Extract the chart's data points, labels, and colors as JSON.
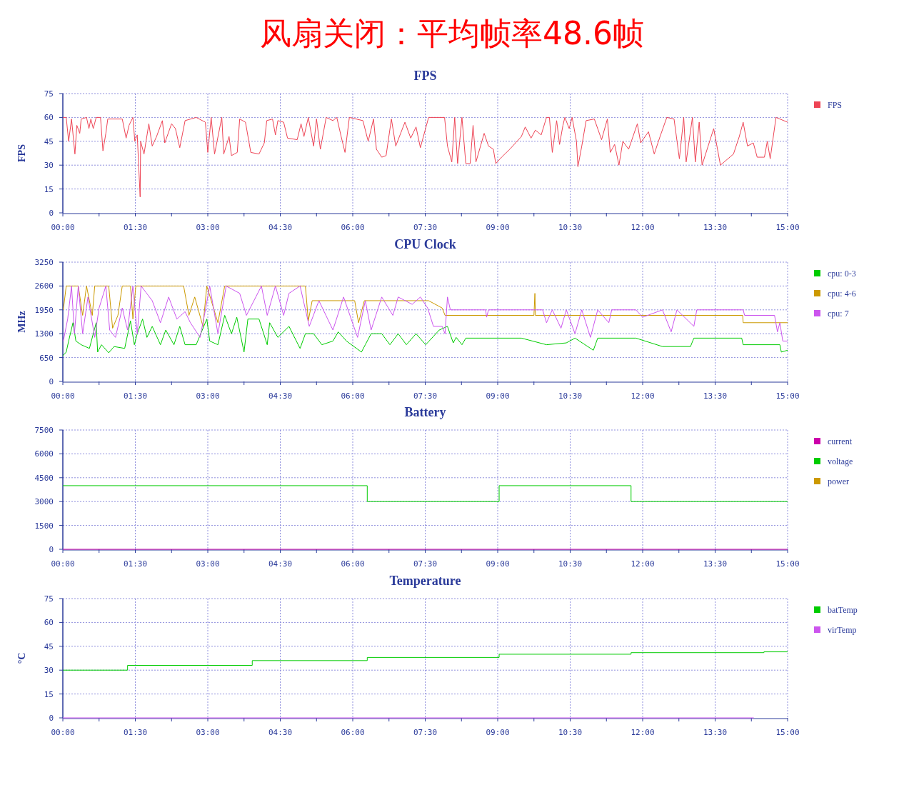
{
  "chart_data": [
    {
      "type": "line",
      "title": "风扇关闭：平均帧率48.6帧",
      "subtitle": "FPS",
      "ylabel": "FPS",
      "xlim": [
        0,
        15
      ],
      "ylim": [
        0,
        75
      ],
      "yticks": [
        0,
        15,
        30,
        45,
        60,
        75
      ],
      "grid": true,
      "legend": "top right",
      "xticks": [
        {
          "value": 0,
          "label": "00:00"
        },
        {
          "value": 0.75,
          "label": null
        },
        {
          "value": 1.5,
          "label": "01:30"
        },
        {
          "value": 2.25,
          "label": null
        },
        {
          "value": 3,
          "label": "03:00"
        },
        {
          "value": 3.75,
          "label": null
        },
        {
          "value": 4.5,
          "label": "04:30"
        },
        {
          "value": 5.25,
          "label": null
        },
        {
          "value": 6,
          "label": "06:00"
        },
        {
          "value": 6.75,
          "label": null
        },
        {
          "value": 7.5,
          "label": "07:30"
        },
        {
          "value": 8.25,
          "label": null
        },
        {
          "value": 9,
          "label": "09:00"
        },
        {
          "value": 9.75,
          "label": null
        },
        {
          "value": 10.5,
          "label": "10:30"
        },
        {
          "value": 11.25,
          "label": null
        },
        {
          "value": 12,
          "label": "12:00"
        },
        {
          "value": 12.75,
          "label": null
        },
        {
          "value": 13.5,
          "label": "13:30"
        },
        {
          "value": 14.25,
          "label": null
        },
        {
          "value": 15,
          "label": "15:00"
        }
      ],
      "series": [
        {
          "name": "FPS",
          "color": "#ee4455",
          "x": [
            0,
            0.07,
            0.12,
            0.18,
            0.25,
            0.29,
            0.35,
            0.38,
            0.49,
            0.54,
            0.58,
            0.63,
            0.69,
            0.78,
            0.83,
            0.89,
            0.93,
            1.23,
            1.31,
            1.37,
            1.45,
            1.49,
            1.54,
            1.6,
            1.61,
            1.68,
            1.78,
            1.85,
            1.94,
            2.06,
            2.11,
            2.25,
            2.33,
            2.42,
            2.53,
            2.76,
            2.95,
            3.0,
            3.07,
            3.14,
            3.29,
            3.33,
            3.44,
            3.49,
            3.61,
            3.66,
            3.78,
            3.89,
            4.06,
            4.17,
            4.22,
            4.34,
            4.4,
            4.45,
            4.57,
            4.65,
            4.85,
            4.93,
            4.99,
            5.08,
            5.19,
            5.25,
            5.33,
            5.45,
            5.59,
            5.67,
            5.76,
            5.84,
            5.93,
            6.21,
            6.32,
            6.43,
            6.49,
            6.6,
            6.69,
            6.8,
            6.89,
            7.08,
            7.2,
            7.31,
            7.4,
            7.57,
            7.9,
            7.96,
            8.05,
            8.11,
            8.17,
            8.26,
            8.34,
            8.43,
            8.49,
            8.55,
            8.72,
            8.81,
            8.91,
            8.96,
            9.08,
            9.25,
            9.49,
            9.57,
            9.69,
            9.78,
            9.9,
            10.01,
            10.07,
            10.13,
            10.22,
            10.28,
            10.35,
            10.39,
            10.48,
            10.54,
            10.63,
            10.66,
            10.74,
            10.83,
            11.0,
            11.15,
            11.27,
            11.33,
            11.42,
            11.51,
            11.59,
            11.71,
            11.89,
            11.96,
            12.12,
            12.24,
            12.36,
            12.5,
            12.65,
            12.76,
            12.85,
            12.9,
            13.03,
            13.09,
            13.17,
            13.23,
            13.47,
            13.61,
            13.88,
            14.0,
            14.08,
            14.17,
            14.29,
            14.37,
            14.52,
            14.58,
            14.64,
            14.76,
            15
          ],
          "values": [
            60,
            60,
            45,
            59,
            37,
            55,
            50,
            59,
            60,
            53,
            59,
            53,
            60,
            60,
            39,
            50,
            59,
            59,
            47,
            55,
            60,
            45,
            49,
            10,
            45,
            37,
            56,
            42,
            48,
            58,
            44,
            56,
            53,
            41,
            58,
            60,
            57,
            38,
            60,
            37,
            60,
            37,
            48,
            36,
            38,
            59,
            57,
            38,
            37,
            44,
            58,
            59,
            49,
            58,
            57,
            47,
            46,
            56,
            48,
            60,
            42,
            59,
            40,
            60,
            58,
            60,
            48,
            38,
            60,
            58,
            45,
            59,
            40,
            35,
            36,
            59,
            42,
            57,
            47,
            54,
            41,
            60,
            60,
            42,
            32,
            60,
            31,
            60,
            31,
            31,
            55,
            32,
            50,
            42,
            40,
            31,
            35,
            40,
            48,
            54,
            47,
            52,
            49,
            60,
            60,
            38,
            58,
            43,
            55,
            60,
            53,
            60,
            45,
            29,
            42,
            58,
            59,
            46,
            59,
            38,
            43,
            30,
            45,
            40,
            56,
            44,
            51,
            37,
            48,
            60,
            59,
            34,
            60,
            32,
            60,
            32,
            57,
            30,
            53,
            30,
            37,
            48,
            57,
            42,
            44,
            35,
            35,
            45,
            34,
            60,
            57
          ]
        }
      ]
    },
    {
      "type": "line",
      "title": "CPU Clock",
      "ylabel": "MHz",
      "xlim": [
        0,
        15
      ],
      "ylim": [
        0,
        3250
      ],
      "yticks": [
        0,
        650,
        1300,
        1950,
        2600,
        3250
      ],
      "grid": true,
      "legend": "top right",
      "xticks": [
        {
          "value": 0,
          "label": "00:00"
        },
        {
          "value": 0.75,
          "label": null
        },
        {
          "value": 1.5,
          "label": "01:30"
        },
        {
          "value": 2.25,
          "label": null
        },
        {
          "value": 3,
          "label": "03:00"
        },
        {
          "value": 3.75,
          "label": null
        },
        {
          "value": 4.5,
          "label": "04:30"
        },
        {
          "value": 5.25,
          "label": null
        },
        {
          "value": 6,
          "label": "06:00"
        },
        {
          "value": 6.75,
          "label": null
        },
        {
          "value": 7.5,
          "label": "07:30"
        },
        {
          "value": 8.25,
          "label": null
        },
        {
          "value": 9,
          "label": "09:00"
        },
        {
          "value": 9.75,
          "label": null
        },
        {
          "value": 10.5,
          "label": "10:30"
        },
        {
          "value": 11.25,
          "label": null
        },
        {
          "value": 12,
          "label": "12:00"
        },
        {
          "value": 12.75,
          "label": null
        },
        {
          "value": 13.5,
          "label": "13:30"
        },
        {
          "value": 14.25,
          "label": null
        },
        {
          "value": 15,
          "label": "15:00"
        }
      ],
      "series": [
        {
          "name": "cpu: 0-3",
          "color": "#00cc00",
          "x": [
            0,
            0.07,
            0.12,
            0.21,
            0.27,
            0.38,
            0.55,
            0.69,
            0.72,
            0.8,
            0.95,
            1.06,
            1.28,
            1.4,
            1.48,
            1.54,
            1.65,
            1.74,
            1.85,
            2.02,
            2.13,
            2.3,
            2.42,
            2.53,
            2.76,
            2.98,
            3.04,
            3.21,
            3.35,
            3.49,
            3.6,
            3.75,
            3.83,
            4.06,
            4.23,
            4.28,
            4.45,
            4.68,
            4.91,
            5.02,
            5.19,
            5.36,
            5.59,
            5.7,
            5.87,
            6.18,
            6.26,
            6.38,
            6.6,
            6.77,
            6.94,
            7.11,
            7.31,
            7.51,
            7.79,
            7.96,
            8.08,
            8.14,
            8.26,
            8.34,
            9.49,
            10.01,
            10.42,
            10.6,
            10.98,
            11.07,
            11.86,
            12.41,
            12.99,
            13.06,
            14.05,
            14.08,
            14.84,
            14.87,
            15
          ],
          "values": [
            700,
            800,
            1100,
            1600,
            1100,
            1000,
            900,
            1600,
            800,
            1000,
            780,
            950,
            900,
            1650,
            1000,
            1300,
            1700,
            1200,
            1500,
            1000,
            1400,
            1000,
            1500,
            1000,
            1000,
            1700,
            1100,
            1000,
            1800,
            1300,
            1750,
            800,
            1700,
            1700,
            1000,
            1600,
            1200,
            1500,
            900,
            1300,
            1300,
            1000,
            1100,
            1350,
            1100,
            800,
            1000,
            1300,
            1300,
            1000,
            1300,
            1000,
            1300,
            1000,
            1400,
            1500,
            1050,
            1200,
            1000,
            1180,
            1180,
            1000,
            1050,
            1180,
            850,
            1180,
            1180,
            950,
            950,
            1180,
            1180,
            1000,
            1000,
            800,
            850
          ]
        },
        {
          "name": "cpu: 4-6",
          "color": "#cc9900",
          "x": [
            0.01,
            0.07,
            0.32,
            0.41,
            0.49,
            0.61,
            0.66,
            0.95,
            1.03,
            1.14,
            1.23,
            1.4,
            1.45,
            1.51,
            2.5,
            2.61,
            2.73,
            2.9,
            2.98,
            3.21,
            3.35,
            5.02,
            5.08,
            5.16,
            6.04,
            6.12,
            6.24,
            7.57,
            7.85,
            7.91,
            9.75,
            9.77,
            9.78,
            14.07,
            14.08,
            15
          ],
          "values": [
            1950,
            2600,
            2600,
            1800,
            2600,
            1800,
            2600,
            2600,
            1450,
            1800,
            2600,
            2600,
            1700,
            2600,
            2600,
            1800,
            2300,
            1500,
            2600,
            1600,
            2600,
            2600,
            1650,
            2200,
            2200,
            1600,
            2200,
            2200,
            2000,
            1800,
            1800,
            2400,
            1800,
            1800,
            1600,
            1600
          ]
        },
        {
          "name": "cpu: 7",
          "color": "#cc55ee",
          "x": [
            0.01,
            0.1,
            0.18,
            0.24,
            0.32,
            0.41,
            0.52,
            0.66,
            0.75,
            0.89,
            0.97,
            1.09,
            1.23,
            1.34,
            1.45,
            1.54,
            1.62,
            1.85,
            2.02,
            2.19,
            2.36,
            2.53,
            2.64,
            2.84,
            2.93,
            3.04,
            3.21,
            3.38,
            3.66,
            3.8,
            4.11,
            4.23,
            4.4,
            4.57,
            4.68,
            4.91,
            5.1,
            5.3,
            5.59,
            5.81,
            6.1,
            6.26,
            6.38,
            6.6,
            6.83,
            6.94,
            7.23,
            7.4,
            7.55,
            7.67,
            7.85,
            7.91,
            7.96,
            8.02,
            8.37,
            8.75,
            8.77,
            8.81,
            9.93,
            10.01,
            10.13,
            10.31,
            10.42,
            10.6,
            10.74,
            10.92,
            11.07,
            11.3,
            11.36,
            11.86,
            12.0,
            12.41,
            12.59,
            12.71,
            13.06,
            13.12,
            14.08,
            14.11,
            14.73,
            14.79,
            14.84,
            14.9,
            15
          ],
          "values": [
            1100,
            1700,
            2600,
            1300,
            2600,
            1300,
            2300,
            1200,
            2000,
            2600,
            1400,
            1200,
            2000,
            1400,
            2600,
            1300,
            2600,
            2200,
            1600,
            2300,
            1700,
            1900,
            1600,
            1200,
            1800,
            2600,
            1300,
            2600,
            2400,
            1800,
            2600,
            1800,
            2600,
            1800,
            2400,
            2600,
            1500,
            2200,
            1400,
            2300,
            1200,
            2200,
            1400,
            2300,
            1800,
            2300,
            2100,
            2300,
            2000,
            1500,
            1500,
            1300,
            2300,
            1950,
            1950,
            1950,
            1750,
            1950,
            1950,
            1600,
            1950,
            1450,
            1950,
            1300,
            1950,
            1200,
            1950,
            1600,
            1950,
            1950,
            1750,
            1950,
            1350,
            1950,
            1500,
            1950,
            1950,
            1800,
            1800,
            1350,
            1600,
            1100,
            1100
          ]
        }
      ]
    },
    {
      "type": "step",
      "title": "Battery",
      "xlim": [
        0,
        15
      ],
      "ylim": [
        0,
        7500
      ],
      "yticks": [
        0,
        1500,
        3000,
        4500,
        6000,
        7500
      ],
      "grid": true,
      "legend": "top right",
      "xticks": [
        {
          "value": 0,
          "label": "00:00"
        },
        {
          "value": 0.75,
          "label": null
        },
        {
          "value": 1.5,
          "label": "01:30"
        },
        {
          "value": 2.25,
          "label": null
        },
        {
          "value": 3,
          "label": "03:00"
        },
        {
          "value": 3.75,
          "label": null
        },
        {
          "value": 4.5,
          "label": "04:30"
        },
        {
          "value": 5.25,
          "label": null
        },
        {
          "value": 6,
          "label": "06:00"
        },
        {
          "value": 6.75,
          "label": null
        },
        {
          "value": 7.5,
          "label": "07:30"
        },
        {
          "value": 8.25,
          "label": null
        },
        {
          "value": 9,
          "label": "09:00"
        },
        {
          "value": 9.75,
          "label": null
        },
        {
          "value": 10.5,
          "label": "10:30"
        },
        {
          "value": 11.25,
          "label": null
        },
        {
          "value": 12,
          "label": "12:00"
        },
        {
          "value": 12.75,
          "label": null
        },
        {
          "value": 13.5,
          "label": "13:30"
        },
        {
          "value": 14.25,
          "label": null
        },
        {
          "value": 15,
          "label": "15:00"
        }
      ],
      "series": [
        {
          "name": "current",
          "color": "#cc00aa",
          "x": [
            0,
            15
          ],
          "values": [
            0,
            0
          ]
        },
        {
          "name": "voltage",
          "color": "#00cc00",
          "x": [
            0,
            6.3,
            9.03,
            11.76,
            15
          ],
          "values": [
            4000,
            3000,
            4000,
            3000,
            3000
          ]
        },
        {
          "name": "power",
          "color": "#cc9900",
          "values": [
            null,
            null
          ]
        }
      ]
    },
    {
      "type": "step",
      "title": "Temperature",
      "ylabel": "°C",
      "xlim": [
        0,
        15
      ],
      "ylim": [
        0,
        75
      ],
      "yticks": [
        0,
        15,
        30,
        45,
        60,
        75
      ],
      "grid": true,
      "legend": "top right",
      "xticks": [
        {
          "value": 0,
          "label": "00:00"
        },
        {
          "value": 0.75,
          "label": null
        },
        {
          "value": 1.5,
          "label": "01:30"
        },
        {
          "value": 2.25,
          "label": null
        },
        {
          "value": 3,
          "label": "03:00"
        },
        {
          "value": 3.75,
          "label": null
        },
        {
          "value": 4.5,
          "label": "04:30"
        },
        {
          "value": 5.25,
          "label": null
        },
        {
          "value": 6,
          "label": "06:00"
        },
        {
          "value": 6.75,
          "label": null
        },
        {
          "value": 7.5,
          "label": "07:30"
        },
        {
          "value": 8.25,
          "label": null
        },
        {
          "value": 9,
          "label": "09:00"
        },
        {
          "value": 9.75,
          "label": null
        },
        {
          "value": 10.5,
          "label": "10:30"
        },
        {
          "value": 11.25,
          "label": null
        },
        {
          "value": 12,
          "label": "12:00"
        },
        {
          "value": 12.75,
          "label": null
        },
        {
          "value": 13.5,
          "label": "13:30"
        },
        {
          "value": 14.25,
          "label": null
        },
        {
          "value": 15,
          "label": "15:00"
        }
      ],
      "series": [
        {
          "name": "batTemp",
          "color": "#00cc00",
          "x": [
            0,
            1.34,
            3.92,
            6.3,
            9.03,
            11.76,
            14.51,
            15
          ],
          "values": [
            30,
            33,
            36,
            38,
            40,
            41,
            41.5,
            41.5
          ]
        },
        {
          "name": "virTemp",
          "color": "#cc55ee",
          "x": [
            0,
            14.3
          ],
          "values": [
            0,
            0
          ]
        }
      ]
    }
  ]
}
